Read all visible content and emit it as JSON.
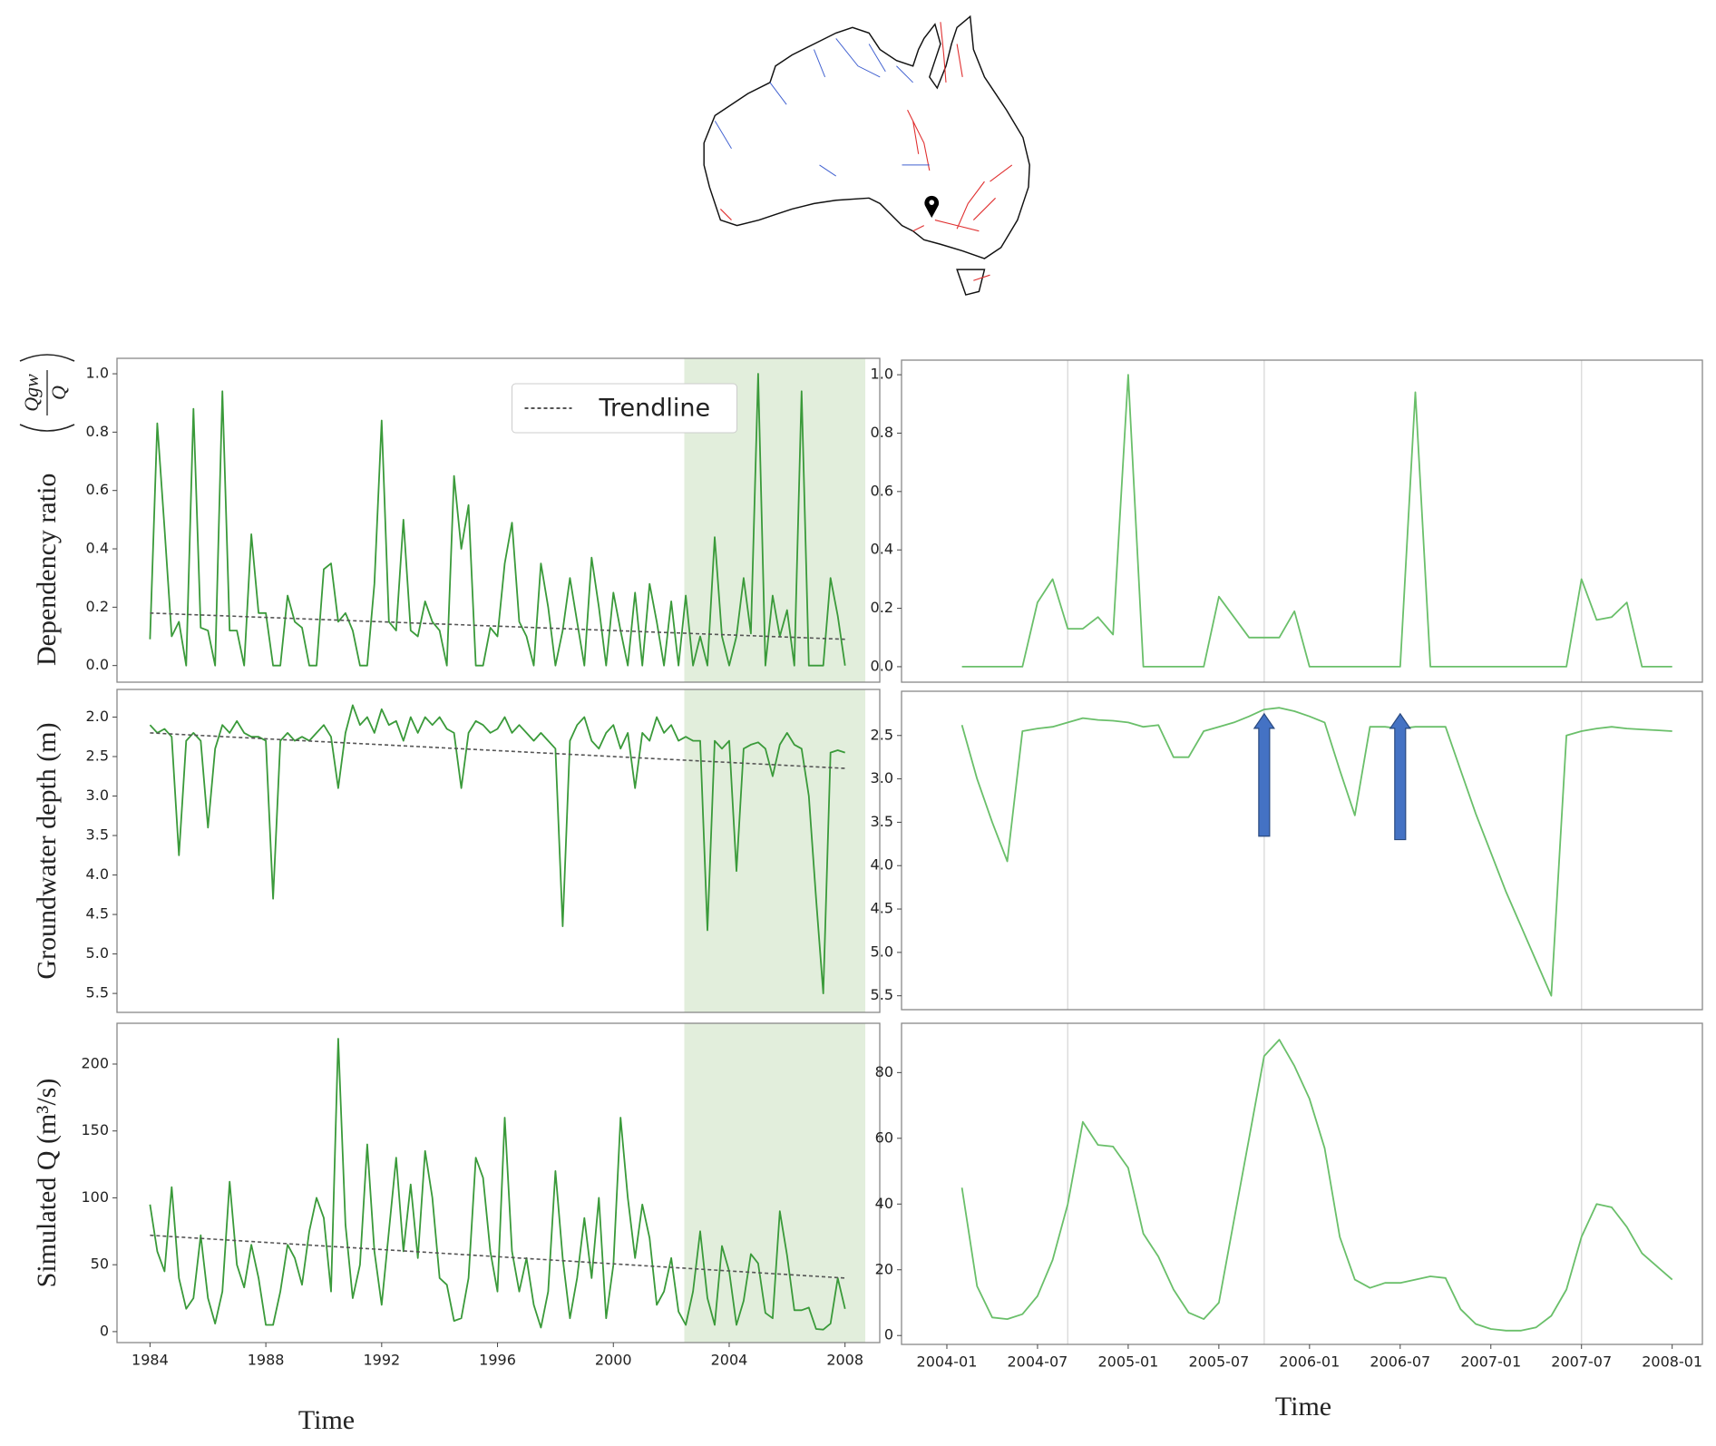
{
  "chart_data": [
    {
      "type": "line",
      "ylabel": "Dependency ratio",
      "ylabel_fraction": {
        "numerator": "Qgw",
        "denominator": "Q"
      },
      "xlim": [
        1982.86,
        2009.2
      ],
      "ylim": [
        -0.057,
        1.053
      ],
      "yticks": [
        {
          "value": 0,
          "label": "0.0"
        },
        0.2,
        0.4,
        0.6,
        0.8,
        {
          "value": 1,
          "label": "1.0"
        }
      ],
      "span": [
        2002.45,
        2008.7
      ],
      "span_color": "#e2eedc",
      "legend": "upper center",
      "x": [
        1984,
        1984.25,
        1984.5,
        1984.75,
        1985,
        1985.25,
        1985.5,
        1985.75,
        1986,
        1986.25,
        1986.5,
        1986.75,
        1987,
        1987.25,
        1987.5,
        1987.75,
        1988,
        1988.25,
        1988.5,
        1988.75,
        1989,
        1989.25,
        1989.5,
        1989.75,
        1990,
        1990.25,
        1990.5,
        1990.75,
        1991,
        1991.25,
        1991.5,
        1991.75,
        1992,
        1992.25,
        1992.5,
        1992.75,
        1993,
        1993.25,
        1993.5,
        1993.75,
        1994,
        1994.25,
        1994.5,
        1994.75,
        1995,
        1995.25,
        1995.5,
        1995.75,
        1996,
        1996.25,
        1996.5,
        1996.75,
        1997,
        1997.25,
        1997.5,
        1997.75,
        1998,
        1998.25,
        1998.5,
        1998.75,
        1999,
        1999.25,
        1999.5,
        1999.75,
        2000,
        2000.25,
        2000.5,
        2000.75,
        2001,
        2001.25,
        2001.5,
        2001.75,
        2002,
        2002.25,
        2002.5,
        2002.75,
        2003,
        2003.25,
        2003.5,
        2003.75,
        2004,
        2004.25,
        2004.5,
        2004.75,
        2005,
        2005.25,
        2005.5,
        2005.75,
        2006,
        2006.25,
        2006.5,
        2006.75,
        2007,
        2007.25,
        2007.5,
        2007.75,
        2008
      ],
      "series": [
        {
          "color": "#3a9a3a",
          "values": [
            0.09,
            0.83,
            0.47,
            0.1,
            0.15,
            0,
            0.88,
            0.13,
            0.12,
            0,
            0.94,
            0.12,
            0.12,
            0,
            0.45,
            0.18,
            0.18,
            0,
            0,
            0.24,
            0.15,
            0.13,
            0,
            0,
            0.33,
            0.35,
            0.15,
            0.18,
            0.12,
            0,
            0,
            0.28,
            0.84,
            0.15,
            0.12,
            0.5,
            0.12,
            0.1,
            0.22,
            0.15,
            0.12,
            0,
            0.65,
            0.4,
            0.55,
            0,
            0,
            0.13,
            0.1,
            0.35,
            0.49,
            0.15,
            0.1,
            0,
            0.35,
            0.2,
            0,
            0.12,
            0.3,
            0.15,
            0,
            0.37,
            0.2,
            0,
            0.25,
            0.12,
            0,
            0.25,
            0,
            0.28,
            0.15,
            0,
            0.22,
            0,
            0.24,
            0,
            0.1,
            0,
            0.44,
            0.1,
            0,
            0.1,
            0.3,
            0.11,
            1.0,
            0,
            0.24,
            0.1,
            0.19,
            0,
            0.94,
            0,
            0,
            0,
            0.3,
            0.17,
            0
          ]
        },
        {
          "name": "Trendline",
          "color": "#555555",
          "dash": true,
          "x": [
            1984,
            2008
          ],
          "values": [
            0.18,
            0.09
          ]
        }
      ]
    },
    {
      "type": "line",
      "ylabel": "Groundwater depth (m)",
      "xlim": [
        1982.86,
        2009.2
      ],
      "ylim": [
        5.74,
        1.65
      ],
      "yticks": [
        {
          "value": 2,
          "label": "2.0"
        },
        2.5,
        {
          "value": 3,
          "label": "3.0"
        },
        3.5,
        {
          "value": 4,
          "label": "4.0"
        },
        4.5,
        {
          "value": 5,
          "label": "5.0"
        },
        5.5
      ],
      "span": [
        2002.45,
        2008.7
      ],
      "span_color": "#e2eedc",
      "x": [
        1984,
        1984.25,
        1984.5,
        1984.75,
        1985,
        1985.25,
        1985.5,
        1985.75,
        1986,
        1986.25,
        1986.5,
        1986.75,
        1987,
        1987.25,
        1987.5,
        1987.75,
        1988,
        1988.25,
        1988.5,
        1988.75,
        1989,
        1989.25,
        1989.5,
        1989.75,
        1990,
        1990.25,
        1990.5,
        1990.75,
        1991,
        1991.25,
        1991.5,
        1991.75,
        1992,
        1992.25,
        1992.5,
        1992.75,
        1993,
        1993.25,
        1993.5,
        1993.75,
        1994,
        1994.25,
        1994.5,
        1994.75,
        1995,
        1995.25,
        1995.5,
        1995.75,
        1996,
        1996.25,
        1996.5,
        1996.75,
        1997,
        1997.25,
        1997.5,
        1997.75,
        1998,
        1998.25,
        1998.5,
        1998.75,
        1999,
        1999.25,
        1999.5,
        1999.75,
        2000,
        2000.25,
        2000.5,
        2000.75,
        2001,
        2001.25,
        2001.5,
        2001.75,
        2002,
        2002.25,
        2002.5,
        2002.75,
        2003,
        2003.25,
        2003.5,
        2003.75,
        2004,
        2004.25,
        2004.5,
        2004.75,
        2005,
        2005.25,
        2005.5,
        2005.75,
        2006,
        2006.25,
        2006.5,
        2006.75,
        2007,
        2007.25,
        2007.5,
        2007.75,
        2008
      ],
      "series": [
        {
          "color": "#3a9a3a",
          "values": [
            2.1,
            2.2,
            2.15,
            2.25,
            3.75,
            2.3,
            2.2,
            2.3,
            3.4,
            2.4,
            2.1,
            2.2,
            2.05,
            2.2,
            2.25,
            2.25,
            2.3,
            4.3,
            2.3,
            2.2,
            2.3,
            2.25,
            2.3,
            2.2,
            2.1,
            2.25,
            2.9,
            2.2,
            1.85,
            2.1,
            2.0,
            2.2,
            1.9,
            2.1,
            2.05,
            2.3,
            2.0,
            2.2,
            2.0,
            2.1,
            2.0,
            2.15,
            2.2,
            2.9,
            2.2,
            2.05,
            2.1,
            2.2,
            2.15,
            2.0,
            2.2,
            2.1,
            2.2,
            2.3,
            2.2,
            2.3,
            2.4,
            4.65,
            2.3,
            2.1,
            2.0,
            2.3,
            2.4,
            2.2,
            2.1,
            2.4,
            2.2,
            2.9,
            2.2,
            2.3,
            2.0,
            2.2,
            2.1,
            2.3,
            2.25,
            2.3,
            2.3,
            4.7,
            2.3,
            2.4,
            2.3,
            3.95,
            2.4,
            2.35,
            2.32,
            2.4,
            2.75,
            2.35,
            2.2,
            2.35,
            2.4,
            3.0,
            4.3,
            5.5,
            2.45,
            2.42,
            2.45
          ]
        },
        {
          "color": "#555555",
          "dash": true,
          "x": [
            1984,
            2008
          ],
          "values": [
            2.2,
            2.65
          ]
        }
      ]
    },
    {
      "type": "line",
      "ylabel": "Simulated Q (m³/s)",
      "xlabel": "Time",
      "xlim": [
        1982.86,
        2009.2
      ],
      "ylim": [
        -8.2,
        230.5
      ],
      "yticks": [
        0,
        50,
        100,
        150,
        200
      ],
      "xticks": [
        1984,
        1988,
        1992,
        1996,
        2000,
        2004,
        2008
      ],
      "span": [
        2002.45,
        2008.7
      ],
      "span_color": "#e2eedc",
      "x": [
        1984,
        1984.25,
        1984.5,
        1984.75,
        1985,
        1985.25,
        1985.5,
        1985.75,
        1986,
        1986.25,
        1986.5,
        1986.75,
        1987,
        1987.25,
        1987.5,
        1987.75,
        1988,
        1988.25,
        1988.5,
        1988.75,
        1989,
        1989.25,
        1989.5,
        1989.75,
        1990,
        1990.25,
        1990.5,
        1990.75,
        1991,
        1991.25,
        1991.5,
        1991.75,
        1992,
        1992.25,
        1992.5,
        1992.75,
        1993,
        1993.25,
        1993.5,
        1993.75,
        1994,
        1994.25,
        1994.5,
        1994.75,
        1995,
        1995.25,
        1995.5,
        1995.75,
        1996,
        1996.25,
        1996.5,
        1996.75,
        1997,
        1997.25,
        1997.5,
        1997.75,
        1998,
        1998.25,
        1998.5,
        1998.75,
        1999,
        1999.25,
        1999.5,
        1999.75,
        2000,
        2000.25,
        2000.5,
        2000.75,
        2001,
        2001.25,
        2001.5,
        2001.75,
        2002,
        2002.25,
        2002.5,
        2002.75,
        2003,
        2003.25,
        2003.5,
        2003.75,
        2004,
        2004.25,
        2004.5,
        2004.75,
        2005,
        2005.25,
        2005.5,
        2005.75,
        2006,
        2006.25,
        2006.5,
        2006.75,
        2007,
        2007.25,
        2007.5,
        2007.75,
        2008
      ],
      "series": [
        {
          "color": "#3a9a3a",
          "values": [
            95,
            60,
            45,
            108,
            40,
            17,
            25,
            72,
            25,
            6,
            30,
            112,
            50,
            33,
            65,
            40,
            5,
            5,
            30,
            65,
            55,
            35,
            75,
            100,
            85,
            30,
            219,
            80,
            25,
            50,
            140,
            60,
            20,
            75,
            130,
            60,
            110,
            55,
            135,
            100,
            40,
            35,
            8,
            10,
            40,
            130,
            115,
            60,
            30,
            160,
            60,
            30,
            55,
            20,
            3,
            30,
            120,
            55,
            10,
            40,
            85,
            40,
            100,
            10,
            50,
            160,
            100,
            55,
            95,
            70,
            20,
            30,
            55,
            15,
            5,
            30,
            75,
            25,
            5,
            64,
            45,
            5,
            23,
            58,
            51,
            14,
            10,
            90,
            57,
            16,
            16,
            18,
            2,
            1.5,
            6,
            40,
            17
          ]
        },
        {
          "color": "#555555",
          "dash": true,
          "x": [
            1984,
            2008
          ],
          "values": [
            72,
            40
          ]
        }
      ]
    },
    {
      "type": "line",
      "xlim": [
        "2003-10",
        "2008-03"
      ],
      "ylim": [
        -0.053,
        1.05
      ],
      "yticks": [
        {
          "value": 0,
          "label": "0.0"
        },
        0.2,
        0.4,
        0.6,
        0.8,
        {
          "value": 1,
          "label": "1.0"
        }
      ],
      "vlines": [
        "2004-09",
        "2005-10",
        "2007-07"
      ],
      "x": [
        "2004-02",
        "2004-03",
        "2004-04",
        "2004-05",
        "2004-06",
        "2004-07",
        "2004-08",
        "2004-09",
        "2004-10",
        "2004-11",
        "2004-12",
        "2005-01",
        "2005-02",
        "2005-03",
        "2005-04",
        "2005-05",
        "2005-06",
        "2005-07",
        "2005-08",
        "2005-09",
        "2005-10",
        "2005-11",
        "2005-12",
        "2006-01",
        "2006-02",
        "2006-03",
        "2006-04",
        "2006-05",
        "2006-06",
        "2006-07",
        "2006-08",
        "2006-09",
        "2006-10",
        "2006-11",
        "2006-12",
        "2007-01",
        "2007-02",
        "2007-03",
        "2007-04",
        "2007-05",
        "2007-06",
        "2007-07",
        "2007-08",
        "2007-09",
        "2007-10",
        "2007-11",
        "2007-12",
        "2008-01"
      ],
      "series": [
        {
          "color": "#6abf6a",
          "values": [
            0,
            0,
            0,
            0,
            0,
            0.22,
            0.3,
            0.13,
            0.13,
            0.17,
            0.11,
            1.0,
            0,
            0,
            0,
            0,
            0,
            0.24,
            0.17,
            0.1,
            0.1,
            0.1,
            0.19,
            0,
            0,
            0,
            0,
            0,
            0,
            0,
            0.94,
            0,
            0,
            0,
            0,
            0,
            0,
            0,
            0,
            0,
            0,
            0.3,
            0.16,
            0.17,
            0.22,
            0,
            0,
            0
          ]
        }
      ]
    },
    {
      "type": "line",
      "xlim": [
        "2003-10",
        "2008-03"
      ],
      "ylim": [
        5.66,
        1.99
      ],
      "yticks": [
        2.5,
        {
          "value": 3,
          "label": "3.0"
        },
        3.5,
        {
          "value": 4,
          "label": "4.0"
        },
        4.5,
        {
          "value": 5,
          "label": "5.0"
        },
        5.5
      ],
      "vlines": [
        "2004-09",
        "2005-10",
        "2007-07"
      ],
      "arrows": [
        {
          "x": "2005-10",
          "y": [
            3.66,
            2.25
          ]
        },
        {
          "x": "2006-07",
          "y": [
            3.7,
            2.25
          ]
        }
      ],
      "arrow_color": "#4472c4",
      "x": [
        "2004-02",
        "2004-03",
        "2004-04",
        "2004-05",
        "2004-06",
        "2004-07",
        "2004-08",
        "2004-09",
        "2004-10",
        "2004-11",
        "2004-12",
        "2005-01",
        "2005-02",
        "2005-03",
        "2005-04",
        "2005-05",
        "2005-06",
        "2005-07",
        "2005-08",
        "2005-09",
        "2005-10",
        "2005-11",
        "2005-12",
        "2006-01",
        "2006-02",
        "2006-03",
        "2006-04",
        "2006-05",
        "2006-06",
        "2006-07",
        "2006-08",
        "2006-09",
        "2006-10",
        "2006-11",
        "2006-12",
        "2007-01",
        "2007-02",
        "2007-03",
        "2007-04",
        "2007-05",
        "2007-06",
        "2007-07",
        "2007-08",
        "2007-09",
        "2007-10",
        "2007-11",
        "2007-12",
        "2008-01"
      ],
      "series": [
        {
          "color": "#6abf6a",
          "values": [
            2.38,
            3.0,
            3.5,
            3.95,
            2.45,
            2.42,
            2.4,
            2.35,
            2.3,
            2.32,
            2.33,
            2.35,
            2.4,
            2.38,
            2.75,
            2.75,
            2.45,
            2.4,
            2.35,
            2.28,
            2.2,
            2.18,
            2.22,
            2.28,
            2.35,
            2.9,
            3.42,
            2.4,
            2.4,
            2.42,
            2.4,
            2.4,
            2.4,
            2.9,
            3.4,
            3.85,
            4.3,
            4.7,
            5.1,
            5.5,
            2.5,
            2.45,
            2.42,
            2.4,
            2.42,
            2.43,
            2.44,
            2.45
          ]
        }
      ]
    },
    {
      "type": "line",
      "xlabel": "Time",
      "xlim": [
        "2003-10",
        "2008-03"
      ],
      "ylim": [
        -2.7,
        95
      ],
      "yticks": [
        0,
        20,
        40,
        60,
        80
      ],
      "xticks": [
        "2004-01",
        "2004-07",
        "2005-01",
        "2005-07",
        "2006-01",
        "2006-07",
        "2007-01",
        "2007-07",
        "2008-01"
      ],
      "vlines": [
        "2004-09",
        "2005-10",
        "2007-07"
      ],
      "x": [
        "2004-02",
        "2004-03",
        "2004-04",
        "2004-05",
        "2004-06",
        "2004-07",
        "2004-08",
        "2004-09",
        "2004-10",
        "2004-11",
        "2004-12",
        "2005-01",
        "2005-02",
        "2005-03",
        "2005-04",
        "2005-05",
        "2005-06",
        "2005-07",
        "2005-08",
        "2005-09",
        "2005-10",
        "2005-11",
        "2005-12",
        "2006-01",
        "2006-02",
        "2006-03",
        "2006-04",
        "2006-05",
        "2006-06",
        "2006-07",
        "2006-08",
        "2006-09",
        "2006-10",
        "2006-11",
        "2006-12",
        "2007-01",
        "2007-02",
        "2007-03",
        "2007-04",
        "2007-05",
        "2007-06",
        "2007-07",
        "2007-08",
        "2007-09",
        "2007-10",
        "2007-11",
        "2007-12",
        "2008-01"
      ],
      "series": [
        {
          "color": "#6abf6a",
          "values": [
            45,
            15,
            5.5,
            5,
            6.5,
            12,
            23,
            40,
            65,
            58,
            57.5,
            51,
            31,
            24,
            14,
            7,
            5,
            10,
            35,
            60,
            85,
            90,
            82,
            72,
            57,
            30,
            17,
            14.5,
            16,
            16,
            17,
            18,
            17.5,
            8,
            3.5,
            2,
            1.5,
            1.5,
            2.5,
            6,
            14,
            30,
            40,
            39,
            33,
            25,
            21,
            17
          ]
        }
      ]
    }
  ]
}
